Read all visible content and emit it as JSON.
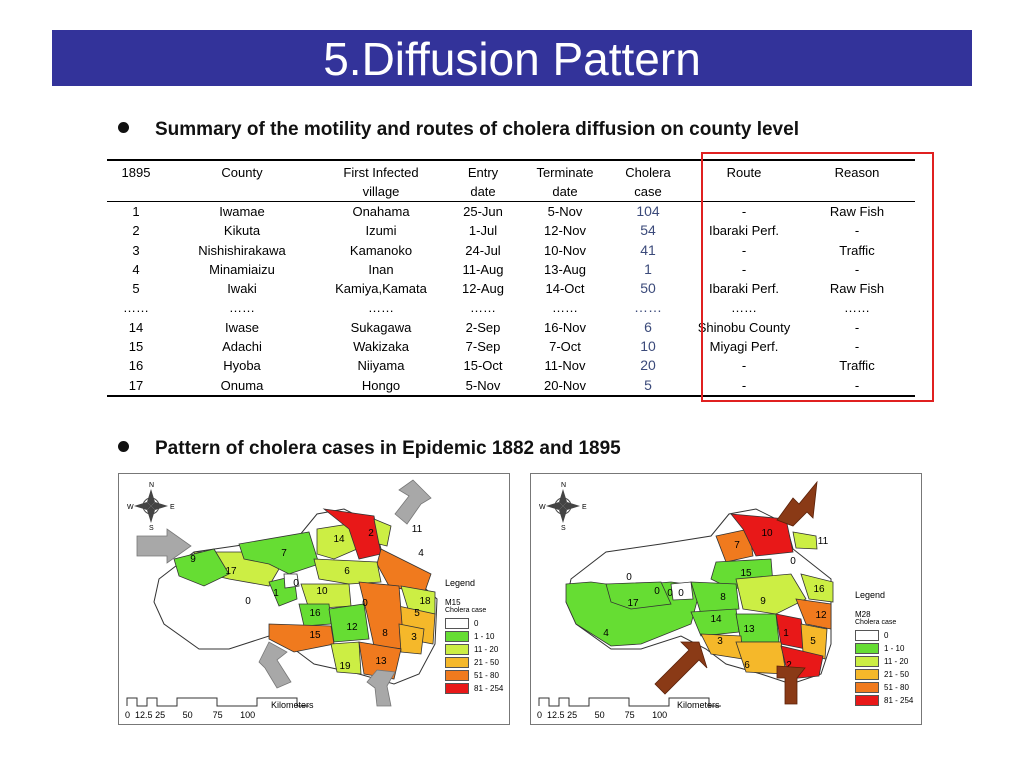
{
  "title": "5.Diffusion Pattern",
  "section1": {
    "heading": "Summary of the motility and routes of cholera diffusion on county level"
  },
  "section2": {
    "heading": "Pattern of cholera cases in Epidemic 1882 and 1895"
  },
  "table": {
    "headers": {
      "year": "1895",
      "county": "County",
      "village_line1": "First Infected",
      "village_line2": "village",
      "entry_line1": "Entry",
      "entry_line2": "date",
      "terminate_line1": "Terminate",
      "terminate_line2": "date",
      "cases_line1": "Cholera",
      "cases_line2": "case",
      "route": "Route",
      "reason": "Reason"
    },
    "rows": [
      {
        "no": "1",
        "county": "Iwamae",
        "village": "Onahama",
        "entry": "25-Jun",
        "terminate": "5-Nov",
        "cases": "104",
        "route": "-",
        "reason": "Raw Fish"
      },
      {
        "no": "2",
        "county": "Kikuta",
        "village": "Izumi",
        "entry": "1-Jul",
        "terminate": "12-Nov",
        "cases": "54",
        "route": "Ibaraki Perf.",
        "reason": "-"
      },
      {
        "no": "3",
        "county": "Nishishirakawa",
        "village": "Kamanoko",
        "entry": "24-Jul",
        "terminate": "10-Nov",
        "cases": "41",
        "route": "-",
        "reason": "Traffic"
      },
      {
        "no": "4",
        "county": "Minamiaizu",
        "village": "Inan",
        "entry": "11-Aug",
        "terminate": "13-Aug",
        "cases": "1",
        "route": "-",
        "reason": "-"
      },
      {
        "no": "5",
        "county": "Iwaki",
        "village": "Kamiya,Kamata",
        "entry": "12-Aug",
        "terminate": "14-Oct",
        "cases": "50",
        "route": "Ibaraki Perf.",
        "reason": "Raw Fish"
      },
      {
        "no": "……",
        "county": "……",
        "village": "……",
        "entry": "……",
        "terminate": "……",
        "cases": "……",
        "route": "……",
        "reason": "……"
      },
      {
        "no": "14",
        "county": "Iwase",
        "village": "Sukagawa",
        "entry": "2-Sep",
        "terminate": "16-Nov",
        "cases": "6",
        "route": "Shinobu County",
        "reason": "-"
      },
      {
        "no": "15",
        "county": "Adachi",
        "village": "Wakizaka",
        "entry": "7-Sep",
        "terminate": "7-Oct",
        "cases": "10",
        "route": "Miyagi Perf.",
        "reason": "-"
      },
      {
        "no": "16",
        "county": "Hyoba",
        "village": "Niiyama",
        "entry": "15-Oct",
        "terminate": "11-Nov",
        "cases": "20",
        "route": "-",
        "reason": "Traffic"
      },
      {
        "no": "17",
        "county": "Onuma",
        "village": "Hongo",
        "entry": "5-Nov",
        "terminate": "20-Nov",
        "cases": "5",
        "route": "-",
        "reason": "-"
      }
    ]
  },
  "colors": {
    "title_bar": "#33339a",
    "highlight_box": "#e02020",
    "case_0": "#ffffff",
    "case_1_10": "#66dd33",
    "case_11_20": "#ccee44",
    "case_21_50": "#f5b82a",
    "case_51_80": "#f07a1e",
    "case_81_254": "#e81818",
    "arrow_1882": "#a8a8a8",
    "arrow_1895": "#8a3a16"
  },
  "maps": [
    {
      "legend_title": "Legend",
      "legend_id": "M15",
      "legend_subtitle": "Cholera case",
      "legend_items": [
        "0",
        "1 - 10",
        "11 - 20",
        "21 - 50",
        "51 - 80",
        "81 - 254"
      ],
      "compass": [
        "N",
        "W",
        "E",
        "S"
      ],
      "scale_ticks": [
        "0",
        "12.5",
        "25",
        "50",
        "75",
        "100"
      ],
      "scale_unit": "Kilometers",
      "region_labels": [
        "2",
        "14",
        "11",
        "9",
        "7",
        "17",
        "6",
        "4",
        "0",
        "1",
        "10",
        "18",
        "0",
        "0",
        "5",
        "16",
        "12",
        "8",
        "3",
        "15",
        "19",
        "13"
      ]
    },
    {
      "legend_title": "Legend",
      "legend_id": "M28",
      "legend_subtitle": "Cholera case",
      "legend_items": [
        "0",
        "1 - 10",
        "11 - 20",
        "21 - 50",
        "51 - 80",
        "81 - 254"
      ],
      "compass": [
        "N",
        "W",
        "E",
        "S"
      ],
      "scale_ticks": [
        "0",
        "12.5",
        "25",
        "50",
        "75",
        "100"
      ],
      "scale_unit": "Kilometers",
      "region_labels": [
        "10",
        "7",
        "11",
        "0",
        "0",
        "15",
        "0",
        "0",
        "17",
        "0",
        "8",
        "9",
        "16",
        "4",
        "14",
        "13",
        "12",
        "3",
        "1",
        "5",
        "6",
        "2"
      ]
    }
  ]
}
